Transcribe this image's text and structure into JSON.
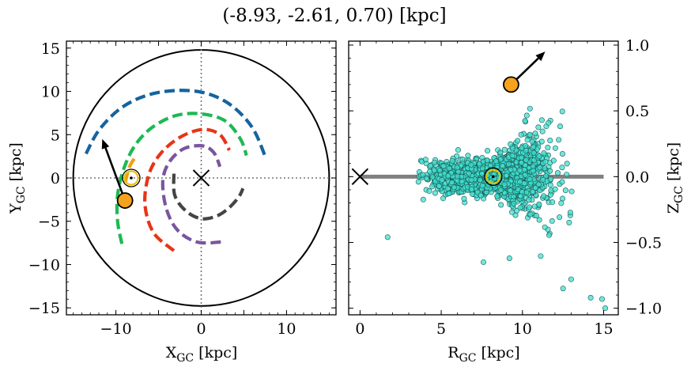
{
  "title": "(-8.93, -2.61, 0.70) [kpc]",
  "chart_data": [
    {
      "type": "scatter",
      "panel": "left",
      "xlabel": "X_GC [kpc]",
      "ylabel": "Y_GC [kpc]",
      "xlim": [
        -15.8,
        15.8
      ],
      "ylim": [
        -15.8,
        15.8
      ],
      "xticks": [
        -10,
        -5,
        0,
        5,
        10
      ],
      "yticks": [
        -15,
        -10,
        -5,
        0,
        5,
        10,
        15
      ],
      "xtick_labels": [
        "−10",
        "",
        "0",
        "",
        "10"
      ],
      "ytick_labels": [
        "−15",
        "−10",
        "−5",
        "0",
        "5",
        "10",
        "15"
      ],
      "galaxy_radius": 15,
      "galactic_center": [
        0,
        0
      ],
      "sun_position": [
        -8.2,
        0
      ],
      "star_position": [
        -8.93,
        -2.61
      ],
      "velocity_arrow_end": [
        -11.6,
        4.5
      ],
      "spiral_arms": [
        {
          "color": "#1464a0",
          "points": [
            [
              -13.5,
              2.8
            ],
            [
              -12,
              5.5
            ],
            [
              -9.5,
              8
            ],
            [
              -6.5,
              9.5
            ],
            [
              -3,
              10.1
            ],
            [
              0.5,
              9.8
            ],
            [
              3.5,
              8.4
            ],
            [
              6,
              5.8
            ],
            [
              7.5,
              2.5
            ]
          ]
        },
        {
          "color": "#1db954",
          "points": [
            [
              -9.3,
              -7.6
            ],
            [
              -9.8,
              -5
            ],
            [
              -9.8,
              -2
            ],
            [
              -9.1,
              1
            ],
            [
              -7.8,
              3.7
            ],
            [
              -5.8,
              5.8
            ],
            [
              -3,
              7.2
            ],
            [
              0,
              7.4
            ],
            [
              2.8,
              6.6
            ],
            [
              4.6,
              4.5
            ],
            [
              5.3,
              2.6
            ]
          ]
        },
        {
          "color": "#f0a010",
          "points": [
            [
              -8.9,
              -0.5
            ],
            [
              -8.4,
              1.3
            ],
            [
              -7.6,
              2.6
            ]
          ]
        },
        {
          "color": "#e83418",
          "points": [
            [
              -3.2,
              -8.4
            ],
            [
              -5.6,
              -6.3
            ],
            [
              -6.6,
              -3
            ],
            [
              -6.1,
              0.5
            ],
            [
              -4.6,
              3
            ],
            [
              -2.3,
              4.8
            ],
            [
              0.2,
              5.6
            ],
            [
              2.2,
              5
            ],
            [
              3.3,
              3.2
            ]
          ]
        },
        {
          "color": "#7a55a0",
          "points": [
            [
              2.3,
              -7.4
            ],
            [
              -0.5,
              -7.4
            ],
            [
              -2.8,
              -6
            ],
            [
              -4.1,
              -3.5
            ],
            [
              -4.5,
              -0.3
            ],
            [
              -3.7,
              1.9
            ],
            [
              -2,
              3.4
            ],
            [
              0.2,
              3.7
            ],
            [
              1.5,
              2.9
            ],
            [
              2.2,
              1.3
            ]
          ]
        },
        {
          "color": "#444444",
          "points": [
            [
              -3.2,
              0.5
            ],
            [
              -3.1,
              -2
            ],
            [
              -1.8,
              -3.8
            ],
            [
              0,
              -4.7
            ],
            [
              1.8,
              -4.4
            ],
            [
              3.2,
              -3.5
            ],
            [
              4.4,
              -2.2
            ],
            [
              4.9,
              -1.2
            ]
          ]
        }
      ]
    },
    {
      "type": "scatter",
      "panel": "right",
      "xlabel": "R_GC [kpc]",
      "ylabel": "Z_GC [kpc]",
      "xlim": [
        -0.7,
        15.9
      ],
      "ylim": [
        -1.05,
        1.03
      ],
      "xticks": [
        0,
        5,
        10,
        15
      ],
      "yticks": [
        -1.0,
        -0.5,
        0.0,
        0.5,
        1.0
      ],
      "xtick_labels": [
        "0",
        "5",
        "10",
        "15"
      ],
      "ytick_labels": [
        "−1.0",
        "−0.5",
        "0.0",
        "0.5",
        "1.0"
      ],
      "disk_extent": [
        0,
        15
      ],
      "galactic_center": [
        0,
        0
      ],
      "sun_position": [
        8.2,
        0
      ],
      "star_position": [
        9.3,
        0.7
      ],
      "velocity_arrow_end": [
        11.4,
        0.95
      ],
      "population": {
        "n_points": 1800,
        "color": "#40e0d0",
        "core_center": [
          8.2,
          0.0
        ],
        "r_range": [
          3.5,
          15
        ],
        "scatter_sigma_near_sun": 0.06,
        "flaring_outer_z_max": 0.98,
        "outliers": [
          [
            1.7,
            -0.46
          ],
          [
            15.1,
            -1.0
          ],
          [
            7.6,
            -0.65
          ],
          [
            9.2,
            -0.62
          ],
          [
            14.2,
            -0.92
          ],
          [
            14.9,
            -0.93
          ],
          [
            12.5,
            -0.85
          ],
          [
            13,
            -0.78
          ]
        ]
      }
    }
  ]
}
